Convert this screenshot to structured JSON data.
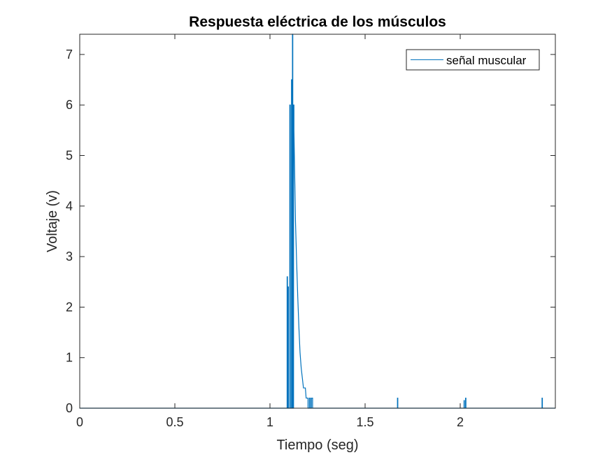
{
  "chart_data": {
    "type": "line",
    "title": "Respuesta eléctrica de los músculos",
    "xlabel": "Tiempo (seg)",
    "ylabel": "Voltaje (v)",
    "xlim": [
      0,
      2.5
    ],
    "ylim": [
      0,
      7.4
    ],
    "xticks": [
      0,
      0.5,
      1,
      1.5,
      2
    ],
    "xtick_labels": [
      "0",
      "0.5",
      "1",
      "1.5",
      "2"
    ],
    "yticks": [
      0,
      1,
      2,
      3,
      4,
      5,
      6,
      7
    ],
    "ytick_labels": [
      "0",
      "1",
      "2",
      "3",
      "4",
      "5",
      "6",
      "7"
    ],
    "grid": false,
    "legend_position": "top-right",
    "series_color": "#0072BD",
    "series": [
      {
        "name": "señal muscular",
        "x": [
          0,
          1.09,
          1.09,
          1.092,
          1.092,
          1.094,
          1.094,
          1.097,
          1.097,
          1.1,
          1.1,
          1.104,
          1.104,
          1.107,
          1.107,
          1.11,
          1.11,
          1.113,
          1.113,
          1.116,
          1.116,
          1.118,
          1.118,
          1.12,
          1.12,
          1.124,
          1.124,
          1.126,
          1.126,
          1.13,
          1.134,
          1.14,
          1.146,
          1.152,
          1.158,
          1.164,
          1.17,
          1.176,
          1.18,
          1.186,
          1.19,
          1.196,
          1.2,
          1.2,
          1.207,
          1.207,
          1.212,
          1.212,
          1.218,
          1.218,
          1.224,
          1.224,
          1.67,
          1.67,
          1.672,
          1.672,
          2.02,
          2.02,
          2.022,
          2.022,
          2.028,
          2.028,
          2.03,
          2.03,
          2.43,
          2.43,
          2.432,
          2.432,
          2.5
        ],
        "y": [
          0,
          0,
          2.6,
          2.6,
          0,
          0,
          2.4,
          2.4,
          0,
          0,
          0,
          0,
          6.0,
          6.0,
          0,
          0,
          0,
          0,
          6.5,
          6.5,
          0,
          0,
          7.4,
          7.4,
          0,
          0,
          6.0,
          6.0,
          5.5,
          4.6,
          3.7,
          2.9,
          2.2,
          1.6,
          1.1,
          0.8,
          0.6,
          0.4,
          0.4,
          0.4,
          0.2,
          0.2,
          0.2,
          0,
          0,
          0.2,
          0.2,
          0,
          0,
          0.2,
          0.2,
          0,
          0,
          0.2,
          0.2,
          0,
          0,
          0.15,
          0.15,
          0,
          0,
          0.2,
          0.2,
          0,
          0,
          0.2,
          0.2,
          0,
          0
        ]
      }
    ]
  }
}
